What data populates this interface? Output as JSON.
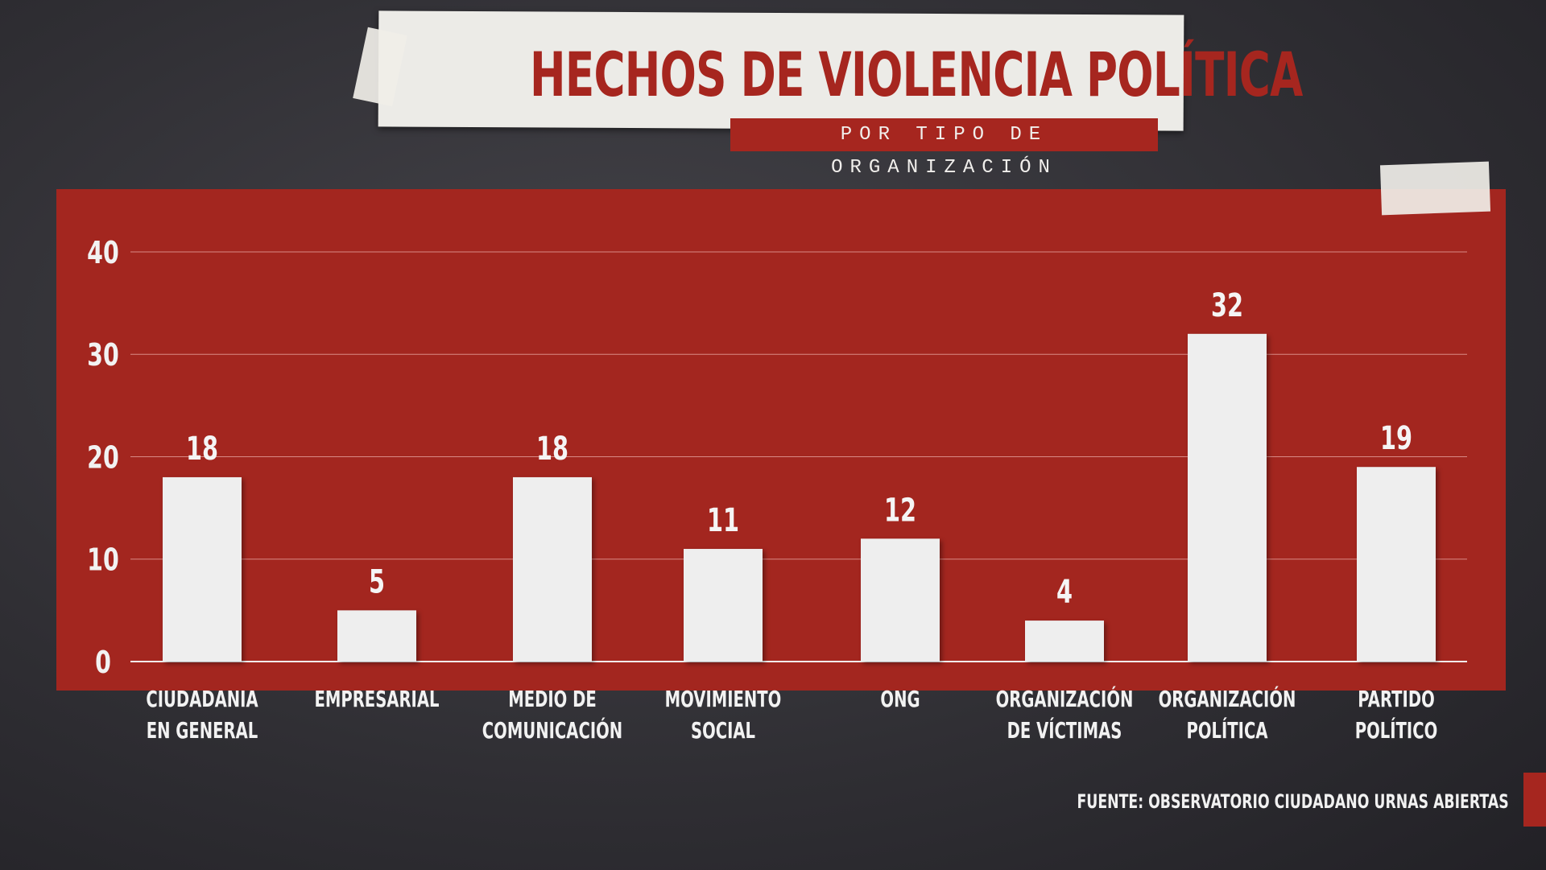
{
  "chart_data": {
    "type": "bar",
    "title": "HECHOS DE VIOLENCIA POLÍTICA",
    "subtitle": "POR TIPO DE ORGANIZACIÓN",
    "categories": [
      [
        "CIUDADANIA",
        "EN GENERAL"
      ],
      [
        "EMPRESARIAL"
      ],
      [
        "MEDIO DE",
        "COMUNICACIÓN"
      ],
      [
        "MOVIMIENTO",
        "SOCIAL"
      ],
      [
        "ONG"
      ],
      [
        "ORGANIZACIÓN",
        "DE VÍCTIMAS"
      ],
      [
        "ORGANIZACIÓN",
        "POLÍTICA"
      ],
      [
        "PARTIDO",
        "POLÍTICO"
      ]
    ],
    "values": [
      18,
      5,
      18,
      11,
      12,
      4,
      32,
      19
    ],
    "yticks": [
      0,
      10,
      20,
      30,
      40
    ],
    "ylim": [
      0,
      40
    ],
    "xlabel": "",
    "ylabel": "",
    "grid": true,
    "colors": {
      "panel": "#a3261f",
      "bar": "#eeeeee",
      "grid": "#d98a85"
    }
  },
  "footer": "FUENTE: OBSERVATORIO CIUDADANO URNAS ABIERTAS"
}
